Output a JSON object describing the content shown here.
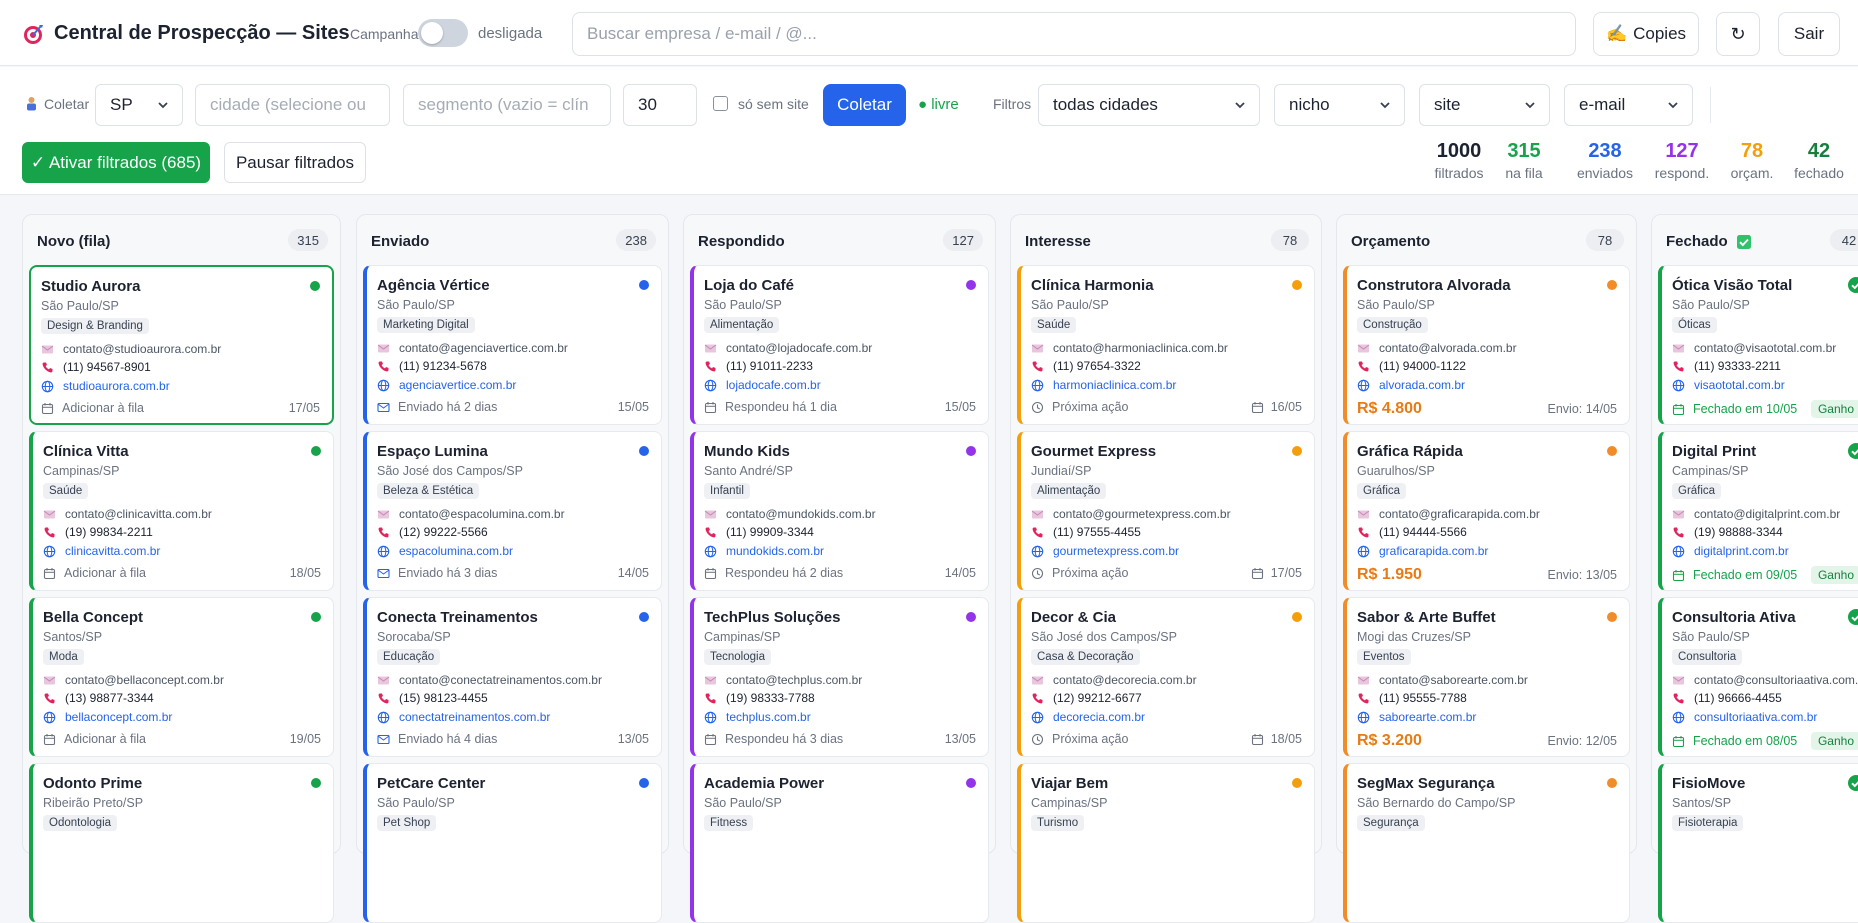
{
  "header": {
    "title": "Central de Prospecção — Sites",
    "campaign_label": "Campanha",
    "campaign_state": "desligada",
    "search_placeholder": "Buscar empresa / e-mail / @...",
    "copies_label": "Copies",
    "copies_icon": "✍️",
    "refresh_icon": "↻",
    "logout_label": "Sair"
  },
  "collect": {
    "label": "Coletar",
    "state": "SP",
    "city_placeholder": "cidade (selecione ou",
    "segment_placeholder": "segmento (vazio = clín",
    "quantity": "30",
    "only_no_site_label": "só sem site",
    "button": "Coletar",
    "status": "● livre"
  },
  "filters": {
    "label": "Filtros",
    "city": "todas cidades",
    "niche": "nicho",
    "site": "site",
    "email": "e-mail",
    "activate_button": "✓ Ativar filtrados (685)",
    "pause_button": "Pausar filtrados"
  },
  "stats": [
    {
      "value": "1000",
      "caption": "filtrados",
      "color": "#1d2230"
    },
    {
      "value": "315",
      "caption": "na fila",
      "color": "#16a34a"
    },
    {
      "value": "238",
      "caption": "enviados",
      "color": "#2563eb"
    },
    {
      "value": "127",
      "caption": "respond.",
      "color": "#9333ea"
    },
    {
      "value": "78",
      "caption": "orçam.",
      "color": "#f59e0b"
    },
    {
      "value": "42",
      "caption": "fechado",
      "color": "#15803d"
    }
  ],
  "columns": [
    {
      "title": "Novo (fila)",
      "count": "315",
      "color": "#16a34a",
      "cards": [
        {
          "name": "Studio Aurora",
          "city": "São Paulo/SP",
          "tag": "Design & Branding",
          "email": "contato@studioaurora.com.br",
          "phone": "(11) 94567-8901",
          "site": "studioaurora.com.br",
          "action": "Adicionar à fila",
          "date": "17/05"
        },
        {
          "name": "Clínica Vitta",
          "city": "Campinas/SP",
          "tag": "Saúde",
          "email": "contato@clinicavitta.com.br",
          "phone": "(19) 99834-2211",
          "site": "clinicavitta.com.br",
          "action": "Adicionar à fila",
          "date": "18/05"
        },
        {
          "name": "Bella Concept",
          "city": "Santos/SP",
          "tag": "Moda",
          "email": "contato@bellaconcept.com.br",
          "phone": "(13) 98877-3344",
          "site": "bellaconcept.com.br",
          "action": "Adicionar à fila",
          "date": "19/05"
        },
        {
          "name": "Odonto Prime",
          "city": "Ribeirão Preto/SP",
          "tag": "Odontologia"
        }
      ]
    },
    {
      "title": "Enviado",
      "count": "238",
      "color": "#2563eb",
      "cards": [
        {
          "name": "Agência Vértice",
          "city": "São Paulo/SP",
          "tag": "Marketing Digital",
          "email": "contato@agenciavertice.com.br",
          "phone": "(11) 91234-5678",
          "site": "agenciavertice.com.br",
          "action": "Enviado há 2 dias",
          "date": "15/05"
        },
        {
          "name": "Espaço Lumina",
          "city": "São José dos Campos/SP",
          "tag": "Beleza & Estética",
          "email": "contato@espacolumina.com.br",
          "phone": "(12) 99222-5566",
          "site": "espacolumina.com.br",
          "action": "Enviado há 3 dias",
          "date": "14/05"
        },
        {
          "name": "Conecta Treinamentos",
          "city": "Sorocaba/SP",
          "tag": "Educação",
          "email": "contato@conectatreinamentos.com.br",
          "phone": "(15) 98123-4455",
          "site": "conectatreinamentos.com.br",
          "action": "Enviado há 4 dias",
          "date": "13/05"
        },
        {
          "name": "PetCare Center",
          "city": "São Paulo/SP",
          "tag": "Pet Shop"
        }
      ]
    },
    {
      "title": "Respondido",
      "count": "127",
      "color": "#9333ea",
      "cards": [
        {
          "name": "Loja do Café",
          "city": "São Paulo/SP",
          "tag": "Alimentação",
          "email": "contato@lojadocafe.com.br",
          "phone": "(11) 91011-2233",
          "site": "lojadocafe.com.br",
          "action": "Respondeu há 1 dia",
          "date": "15/05"
        },
        {
          "name": "Mundo Kids",
          "city": "Santo André/SP",
          "tag": "Infantil",
          "email": "contato@mundokids.com.br",
          "phone": "(11) 99909-3344",
          "site": "mundokids.com.br",
          "action": "Respondeu há 2 dias",
          "date": "14/05"
        },
        {
          "name": "TechPlus Soluções",
          "city": "Campinas/SP",
          "tag": "Tecnologia",
          "email": "contato@techplus.com.br",
          "phone": "(19) 98333-7788",
          "site": "techplus.com.br",
          "action": "Respondeu há 3 dias",
          "date": "13/05"
        },
        {
          "name": "Academia Power",
          "city": "São Paulo/SP",
          "tag": "Fitness"
        }
      ]
    },
    {
      "title": "Interesse",
      "count": "78",
      "color": "#f59e0b",
      "cards": [
        {
          "name": "Clínica Harmonia",
          "city": "São Paulo/SP",
          "tag": "Saúde",
          "email": "contato@harmoniaclinica.com.br",
          "phone": "(11) 97654-3322",
          "site": "harmoniaclinica.com.br",
          "action": "Próxima ação",
          "date": "16/05"
        },
        {
          "name": "Gourmet Express",
          "city": "Jundiaí/SP",
          "tag": "Alimentação",
          "email": "contato@gourmetexpress.com.br",
          "phone": "(11) 97555-4455",
          "site": "gourmetexpress.com.br",
          "action": "Próxima ação",
          "date": "17/05"
        },
        {
          "name": "Decor & Cia",
          "city": "São José dos Campos/SP",
          "tag": "Casa & Decoração",
          "email": "contato@decorecia.com.br",
          "phone": "(12) 99212-6677",
          "site": "decorecia.com.br",
          "action": "Próxima ação",
          "date": "18/05"
        },
        {
          "name": "Viajar Bem",
          "city": "Campinas/SP",
          "tag": "Turismo"
        }
      ]
    },
    {
      "title": "Orçamento",
      "count": "78",
      "color": "#f28c28",
      "cards": [
        {
          "name": "Construtora Alvorada",
          "city": "São Paulo/SP",
          "tag": "Construção",
          "email": "contato@alvorada.com.br",
          "phone": "(11) 94000-1122",
          "site": "alvorada.com.br",
          "price": "R$ 4.800",
          "date": "Envio: 14/05"
        },
        {
          "name": "Gráfica Rápida",
          "city": "Guarulhos/SP",
          "tag": "Gráfica",
          "email": "contato@graficarapida.com.br",
          "phone": "(11) 94444-5566",
          "site": "graficarapida.com.br",
          "price": "R$ 1.950",
          "date": "Envio: 13/05"
        },
        {
          "name": "Sabor & Arte Buffet",
          "city": "Mogi das Cruzes/SP",
          "tag": "Eventos",
          "email": "contato@saborearte.com.br",
          "phone": "(11) 95555-7788",
          "site": "saborearte.com.br",
          "price": "R$ 3.200",
          "date": "Envio: 12/05"
        },
        {
          "name": "SegMax Segurança",
          "city": "São Bernardo do Campo/SP",
          "tag": "Segurança"
        }
      ]
    },
    {
      "title": "Fechado",
      "count": "42",
      "color": "#16a34a",
      "cards": [
        {
          "name": "Ótica Visão Total",
          "city": "São Paulo/SP",
          "tag": "Óticas",
          "email": "contato@visaototal.com.br",
          "phone": "(11) 93333-2211",
          "site": "visaototal.com.br",
          "action": "Fechado em 10/05",
          "badge": "Ganho"
        },
        {
          "name": "Digital Print",
          "city": "Campinas/SP",
          "tag": "Gráfica",
          "email": "contato@digitalprint.com.br",
          "phone": "(19) 98888-3344",
          "site": "digitalprint.com.br",
          "action": "Fechado em 09/05",
          "badge": "Ganho"
        },
        {
          "name": "Consultoria Ativa",
          "city": "São Paulo/SP",
          "tag": "Consultoria",
          "email": "contato@consultoriaativa.com.br",
          "phone": "(11) 96666-4455",
          "site": "consultoriaativa.com.br",
          "action": "Fechado em 08/05",
          "badge": "Ganho"
        },
        {
          "name": "FisioMove",
          "city": "Santos/SP",
          "tag": "Fisioterapia"
        }
      ]
    }
  ]
}
